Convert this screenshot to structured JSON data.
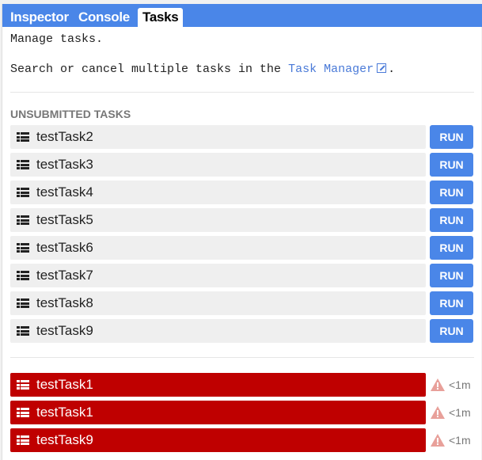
{
  "tabs": [
    {
      "label": "Inspector"
    },
    {
      "label": "Console"
    },
    {
      "label": "Tasks"
    }
  ],
  "active_tab": "Tasks",
  "intro": "Manage tasks.",
  "search_prefix": "Search or cancel multiple tasks in the ",
  "task_manager_link": "Task Manager",
  "search_suffix": ".",
  "unsubmitted_header": "UNSUBMITTED TASKS",
  "run_label": "RUN",
  "unsubmitted": [
    {
      "name": "testTask2"
    },
    {
      "name": "testTask3"
    },
    {
      "name": "testTask4"
    },
    {
      "name": "testTask5"
    },
    {
      "name": "testTask6"
    },
    {
      "name": "testTask7"
    },
    {
      "name": "testTask8"
    },
    {
      "name": "testTask9"
    }
  ],
  "failed": [
    {
      "name": "testTask1",
      "age": "<1m",
      "status": "failed"
    },
    {
      "name": "testTask1",
      "age": "<1m",
      "status": "failed"
    },
    {
      "name": "testTask9",
      "age": "<1m",
      "status": "failed"
    }
  ],
  "colors": {
    "accent": "#4a86e8",
    "failed": "#bf0000",
    "warning": "#e8a09a"
  }
}
